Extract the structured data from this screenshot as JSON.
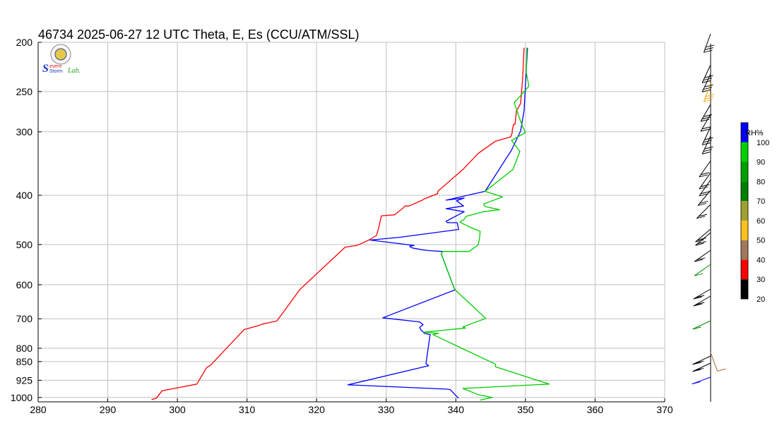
{
  "title": "46734  2025-06-27 12 UTC  Theta, E, Es (CCU/ATM/SSL)",
  "logo": {
    "text_s": "S",
    "text_severe": "evere",
    "text_storm": "Storm",
    "text_lab": "Lab."
  },
  "colorbar": {
    "label": "RH%",
    "levels": [
      20,
      30,
      40,
      50,
      60,
      70,
      80,
      90,
      100
    ],
    "colors": [
      "#000000",
      "#ff0000",
      "#a0785a",
      "#ffc020",
      "#a0a030",
      "#008000",
      "#00a000",
      "#00d000",
      "#0000ff"
    ]
  },
  "chart_data": {
    "type": "line",
    "title": "46734  2025-06-27 12 UTC  Theta, E, Es (CCU/ATM/SSL)",
    "x_axis": {
      "range": [
        280,
        370
      ],
      "ticks": [
        280,
        290,
        300,
        310,
        320,
        330,
        340,
        350,
        360,
        370
      ]
    },
    "y_axis": {
      "scale": "log-pressure",
      "range": [
        1020,
        200
      ],
      "ticks": [
        1000,
        925,
        850,
        800,
        700,
        600,
        500,
        400,
        300,
        250,
        200
      ]
    },
    "grid": true,
    "series": [
      {
        "color": "#ff0000",
        "points": [
          [
            296.3,
            1010
          ],
          [
            297,
            1003
          ],
          [
            297.8,
            970
          ],
          [
            302.8,
            941
          ],
          [
            304.2,
            874
          ],
          [
            304.8,
            863
          ],
          [
            309.6,
            735
          ],
          [
            309.9,
            733
          ],
          [
            311.8,
            721
          ],
          [
            312.2,
            717
          ],
          [
            314.3,
            707
          ],
          [
            317.6,
            613
          ],
          [
            324.1,
            506
          ],
          [
            325.8,
            502
          ],
          [
            327.5,
            490
          ],
          [
            328.6,
            480
          ],
          [
            328.9,
            465
          ],
          [
            329.3,
            439
          ],
          [
            331.2,
            437
          ],
          [
            332.4,
            424
          ],
          [
            332.7,
            420
          ],
          [
            333.3,
            420
          ],
          [
            335.2,
            409
          ],
          [
            335.4,
            407
          ],
          [
            337.4,
            397
          ],
          [
            337.4,
            393
          ],
          [
            341.1,
            355
          ],
          [
            343.2,
            331
          ],
          [
            345.7,
            313
          ],
          [
            347.9,
            307
          ],
          [
            348.1,
            301
          ],
          [
            348.1,
            298
          ],
          [
            348.3,
            290
          ],
          [
            348.5,
            290
          ],
          [
            348.7,
            273
          ],
          [
            349.3,
            264
          ],
          [
            349.6,
            236
          ],
          [
            349.8,
            205
          ]
        ]
      },
      {
        "color": "#0000ff",
        "points": [
          [
            340.4,
            1003
          ],
          [
            340.2,
            998
          ],
          [
            339.2,
            965
          ],
          [
            338.8,
            963
          ],
          [
            324.5,
            944
          ],
          [
            336.1,
            866
          ],
          [
            335.7,
            858
          ],
          [
            336.3,
            752
          ],
          [
            335.5,
            748
          ],
          [
            335.4,
            745
          ],
          [
            335.0,
            737
          ],
          [
            334.8,
            728
          ],
          [
            335.3,
            719
          ],
          [
            334.8,
            710
          ],
          [
            329.5,
            697
          ],
          [
            339.9,
            614
          ],
          [
            339.7,
            607
          ],
          [
            337.9,
            521
          ],
          [
            338.1,
            516
          ],
          [
            336.2,
            514
          ],
          [
            335.1,
            512
          ],
          [
            333.8,
            508
          ],
          [
            333.4,
            505
          ],
          [
            333.4,
            504
          ],
          [
            334.0,
            502
          ],
          [
            327.7,
            490
          ],
          [
            331.9,
            484
          ],
          [
            340.4,
            467
          ],
          [
            340.2,
            453
          ],
          [
            338.8,
            453
          ],
          [
            338.6,
            450
          ],
          [
            341.2,
            431
          ],
          [
            338.6,
            425
          ],
          [
            341.1,
            420
          ],
          [
            340.1,
            410
          ],
          [
            341.2,
            405
          ],
          [
            338.6,
            409
          ],
          [
            344.2,
            393
          ],
          [
            348.0,
            326
          ],
          [
            349.3,
            299
          ],
          [
            349.8,
            273
          ],
          [
            350.3,
            205
          ]
        ]
      },
      {
        "color": "#00cc00",
        "points": [
          [
            343.5,
            1012
          ],
          [
            345.2,
            1000
          ],
          [
            343.2,
            987
          ],
          [
            341.0,
            960
          ],
          [
            353.4,
            941
          ],
          [
            345.7,
            870
          ],
          [
            345.7,
            860
          ],
          [
            336.7,
            752
          ],
          [
            337.5,
            748
          ],
          [
            335.4,
            744
          ],
          [
            341.4,
            730
          ],
          [
            341.0,
            726
          ],
          [
            344.3,
            699
          ],
          [
            339.9,
            614
          ],
          [
            339.7,
            607
          ],
          [
            337.9,
            521
          ],
          [
            338.1,
            516
          ],
          [
            341.9,
            516
          ],
          [
            343.2,
            501
          ],
          [
            343.4,
            487
          ],
          [
            343.5,
            471
          ],
          [
            342.0,
            462
          ],
          [
            340.6,
            452
          ],
          [
            341.2,
            446
          ],
          [
            341.5,
            440
          ],
          [
            344.0,
            431
          ],
          [
            346.3,
            427
          ],
          [
            344.2,
            421
          ],
          [
            344.0,
            416
          ],
          [
            346.7,
            403
          ],
          [
            344.2,
            393
          ],
          [
            348.2,
            356
          ],
          [
            349.2,
            328
          ],
          [
            348.0,
            312
          ],
          [
            350.0,
            301
          ],
          [
            349.5,
            291
          ],
          [
            349.1,
            281
          ],
          [
            348.4,
            263
          ],
          [
            350.5,
            244
          ],
          [
            350.1,
            229
          ],
          [
            350.2,
            205
          ]
        ]
      }
    ]
  }
}
